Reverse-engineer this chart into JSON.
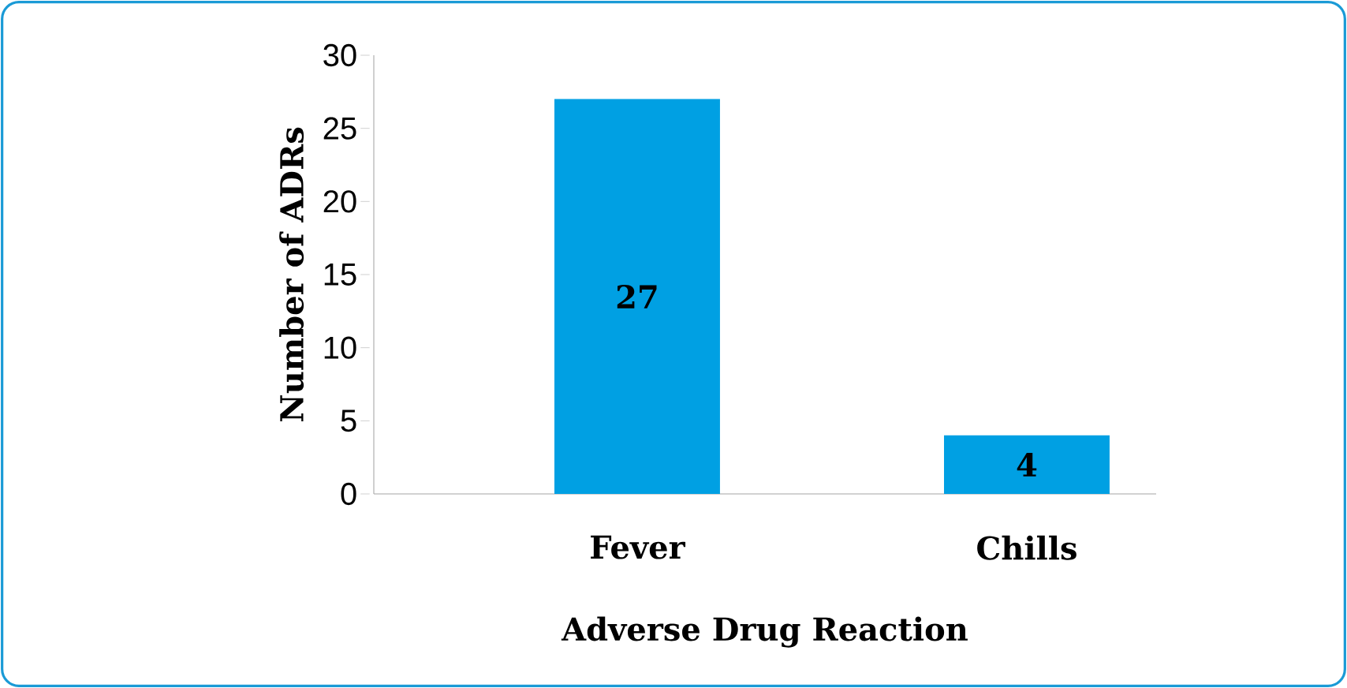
{
  "chart_data": {
    "type": "bar",
    "xlabel": "Adverse Drug Reaction",
    "ylabel": "Number of ADRs",
    "categories": [
      "Fever",
      "Chills"
    ],
    "values": [
      27,
      4
    ],
    "color": "#00a0e3",
    "data_labels": true,
    "ylim": [
      0,
      30
    ],
    "yticks": [
      0,
      5,
      10,
      15,
      20,
      25,
      30
    ],
    "grid": false
  }
}
